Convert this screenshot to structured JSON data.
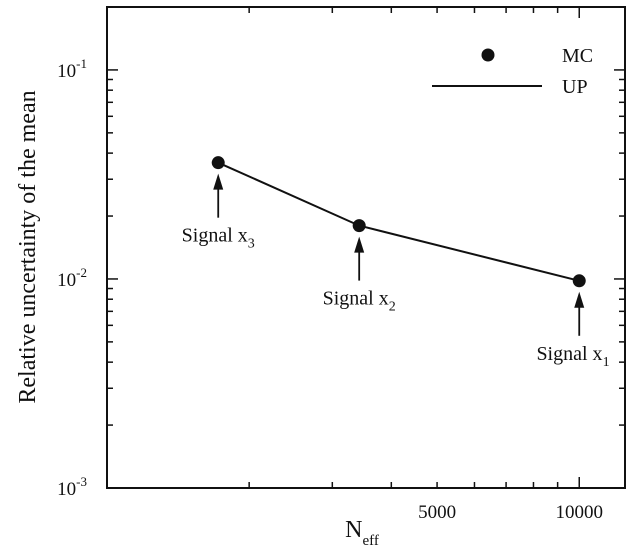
{
  "chart_data": {
    "type": "line",
    "xlabel": {
      "base": "N",
      "sub": "eff"
    },
    "ylabel": "Relative uncertainty of the mean",
    "x_scale": "log",
    "y_scale": "log",
    "xlim": [
      1000,
      12500
    ],
    "ylim": [
      0.001,
      0.2
    ],
    "x_tick_labels": [
      {
        "value": 5000,
        "label": "5000"
      },
      {
        "value": 10000,
        "label": "10000"
      }
    ],
    "y_tick_labels": [
      {
        "value": 0.1,
        "mantissa": "10",
        "exp": "-1"
      },
      {
        "value": 0.01,
        "mantissa": "10",
        "exp": "-2"
      },
      {
        "value": 0.001,
        "mantissa": "10",
        "exp": "-3"
      }
    ],
    "series": [
      {
        "name": "MC",
        "marker": "circle",
        "x": [
          1720,
          3420,
          10000
        ],
        "y": [
          0.036,
          0.018,
          0.0098
        ]
      },
      {
        "name": "UP",
        "marker": "line",
        "x": [
          1720,
          3420,
          10000
        ],
        "y": [
          0.036,
          0.018,
          0.0098
        ]
      }
    ],
    "annotations": [
      {
        "base": "Signal x",
        "sub": "3",
        "x": 1720,
        "y": 0.036
      },
      {
        "base": "Signal x",
        "sub": "2",
        "x": 3420,
        "y": 0.018
      },
      {
        "base": "Signal x",
        "sub": "1",
        "x": 10000,
        "y": 0.0098
      }
    ],
    "legend": {
      "position": "top-right"
    },
    "grid": false,
    "color": "#111111"
  }
}
